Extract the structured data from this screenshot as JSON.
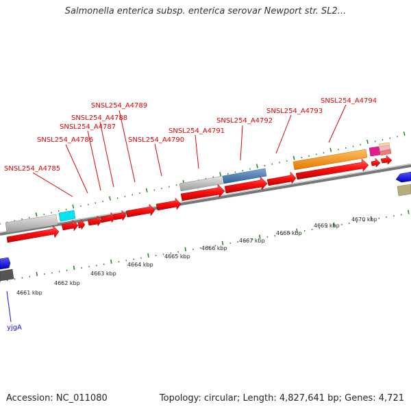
{
  "title": "Salmonella enterica subsp. enterica serovar Newport str. SL2...",
  "accession": "Accession: NC_011080",
  "topology": "Topology: circular; Length: 4,827,641 bp; Genes: 4,721",
  "kbp_labels": [
    "4661 kbp",
    "4662 kbp",
    "4663 kbp",
    "4664 kbp",
    "4665 kbp",
    "4666 kbp",
    "4667 kbp",
    "4668 kbp",
    "4669 kbp",
    "4670 kbp"
  ],
  "gene_labels": {
    "a4785": "SNSL254_A4785",
    "a4786": "SNSL254_A4786",
    "a4787": "SNSL254_A4787",
    "a4788": "SNSL254_A4788",
    "a4789": "SNSL254_A4789",
    "a4790": "SNSL254_A4790",
    "a4791": "SNSL254_A4791",
    "a4792": "SNSL254_A4792",
    "a4793": "SNSL254_A4793",
    "a4794": "SNSL254_A4794",
    "yjgA": "yjgA"
  },
  "colors": {
    "gene_red": "#ff0000",
    "label_red": "#e00000",
    "label_blue": "#1010e0",
    "tick_green": "#228b22",
    "backbone": "#777777",
    "grey_feature": "#bbbbbb",
    "steel_blue": "#4a7fb5",
    "orange": "#ff9900",
    "cyan": "#00e5f0",
    "magenta": "#e0208a",
    "blue": "#0000ff",
    "olive": "#b5ad7a"
  }
}
